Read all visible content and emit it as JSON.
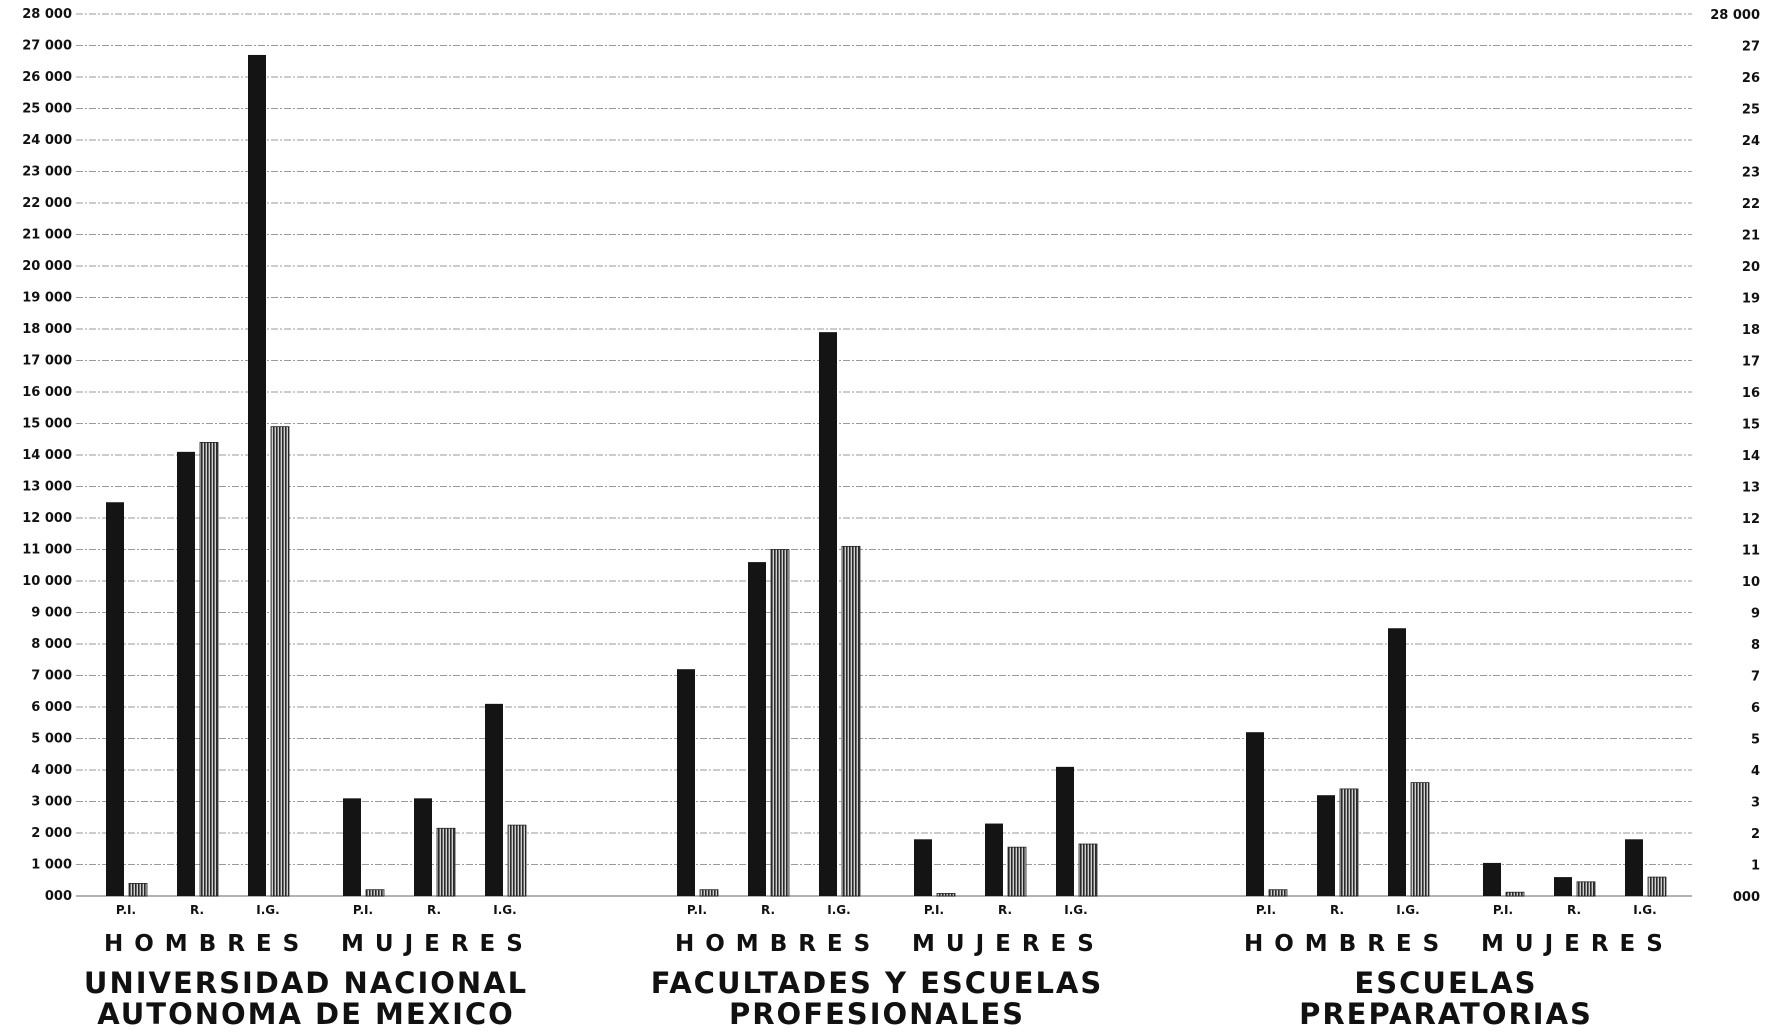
{
  "chart_data": {
    "type": "bar",
    "ylim": [
      0,
      28000
    ],
    "y_tick_labels_left": [
      "000",
      "1 000",
      "2 000",
      "3 000",
      "4 000",
      "5 000",
      "6 000",
      "7 000",
      "8 000",
      "9 000",
      "10 000",
      "11 000",
      "12 000",
      "13 000",
      "14 000",
      "15 000",
      "16 000",
      "17 000",
      "18 000",
      "19 000",
      "20 000",
      "21 000",
      "22 000",
      "23 000",
      "24 000",
      "25 000",
      "26 000",
      "27 000",
      "28 000"
    ],
    "y_tick_labels_right": [
      "000",
      "1",
      "2",
      "3",
      "4",
      "5",
      "6",
      "7",
      "8",
      "9",
      "10",
      "11",
      "12",
      "13",
      "14",
      "15",
      "16",
      "17",
      "18",
      "19",
      "20",
      "21",
      "22",
      "23",
      "24",
      "25",
      "26",
      "27",
      "28 000"
    ],
    "grid": true,
    "bar_categories": [
      "P.I.",
      "R.",
      "I.G."
    ],
    "groups": [
      {
        "title_line1": "UNIVERSIDAD NACIONAL",
        "title_line2": "AUTONOMA DE MEXICO",
        "sexes": [
          {
            "label": "HOMBRES",
            "pairs": [
              [
                12500,
                400
              ],
              [
                14100,
                14400
              ],
              [
                26700,
                14900
              ]
            ]
          },
          {
            "label": "MUJERES",
            "pairs": [
              [
                3100,
                200
              ],
              [
                3100,
                2150
              ],
              [
                6100,
                2250
              ]
            ]
          }
        ]
      },
      {
        "title_line1": "FACULTADES Y ESCUELAS",
        "title_line2": "PROFESIONALES",
        "sexes": [
          {
            "label": "HOMBRES",
            "pairs": [
              [
                7200,
                200
              ],
              [
                10600,
                11000
              ],
              [
                17900,
                11100
              ]
            ]
          },
          {
            "label": "MUJERES",
            "pairs": [
              [
                1800,
                80
              ],
              [
                2300,
                1550
              ],
              [
                4100,
                1650
              ]
            ]
          }
        ]
      },
      {
        "title_line1": "ESCUELAS",
        "title_line2": "PREPARATORIAS",
        "sexes": [
          {
            "label": "HOMBRES",
            "pairs": [
              [
                5200,
                200
              ],
              [
                3200,
                3400
              ],
              [
                8500,
                3600
              ]
            ]
          },
          {
            "label": "MUJERES",
            "pairs": [
              [
                1050,
                120
              ],
              [
                600,
                450
              ],
              [
                1800,
                600
              ]
            ]
          }
        ]
      }
    ],
    "colors": {
      "dark_bar": "#141414",
      "hatched_bar": "#6e6e6e",
      "grid": "#9a9a9a",
      "ink": "#111111"
    }
  }
}
